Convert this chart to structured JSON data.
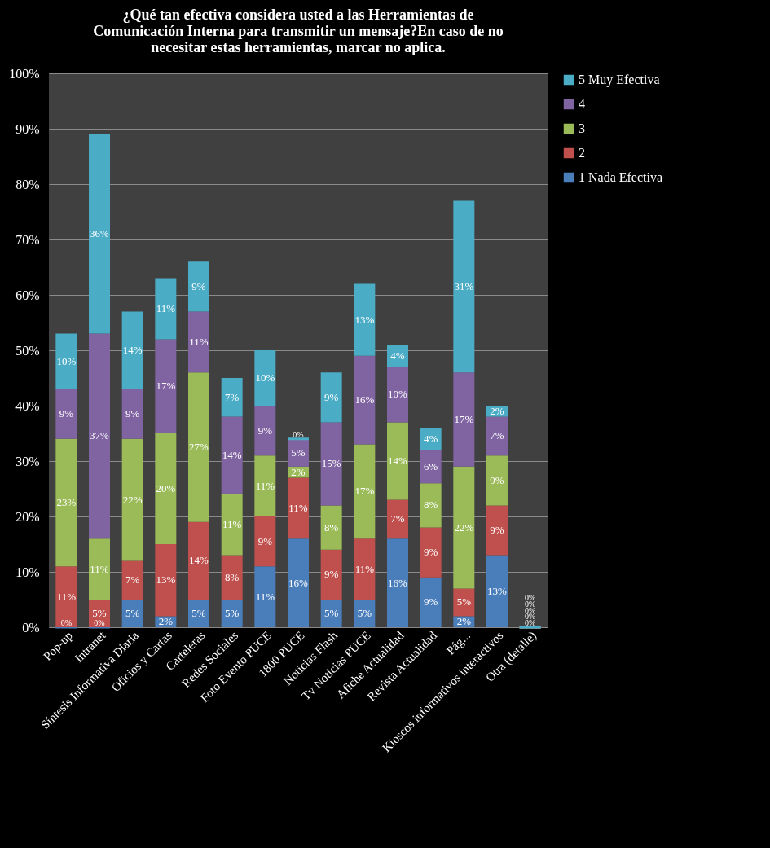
{
  "chart_data": {
    "type": "bar",
    "stacked": true,
    "title": "¿Qué tan efectiva considera usted a las Herramientas de Comunicación Interna para transmitir un mensaje?En caso de no necesitar estas herramientas, marcar no aplica.",
    "categories": [
      "Pop-up",
      "Intranet",
      "Síntesis Informativa Diaria",
      "Oficios y Cartas",
      "Carteleras",
      "Redes Sociales",
      "Foto Evento PUCE",
      "1800 PUCE",
      "Noticias Flash",
      "Tv Noticias PUCE",
      "Afiche Actualidad",
      "Revista Actualidad",
      "Pág...",
      "Kioscos informativos interactivos",
      "Otra (detalle)"
    ],
    "series": [
      {
        "name": "1 Nada Efectiva",
        "color": "#4a7ebb",
        "values": [
          0,
          0,
          5,
          2,
          5,
          5,
          11,
          16,
          5,
          5,
          16,
          9,
          2,
          13,
          0
        ],
        "value_labels": [
          "0%",
          "0%",
          "5%",
          "2%",
          "5%",
          "5%",
          "11%",
          "16%",
          "5%",
          "5%",
          "16%",
          "9%",
          "2%",
          "13%",
          "0%"
        ]
      },
      {
        "name": "2",
        "color": "#c0504d",
        "values": [
          11,
          5,
          7,
          13,
          14,
          8,
          9,
          11,
          9,
          11,
          7,
          9,
          5,
          9,
          0
        ],
        "value_labels": [
          "11%",
          "5%",
          "7%",
          "13%",
          "14%",
          "8%",
          "9%",
          "11%",
          "9%",
          "11%",
          "7%",
          "9%",
          "5%",
          "9%",
          "0%"
        ]
      },
      {
        "name": "3",
        "color": "#9bbb59",
        "values": [
          23,
          11,
          22,
          20,
          27,
          11,
          11,
          2,
          8,
          17,
          14,
          8,
          22,
          9,
          0
        ],
        "value_labels": [
          "23%",
          "11%",
          "22%",
          "20%",
          "27%",
          "11%",
          "11%",
          "2%",
          "8%",
          "17%",
          "14%",
          "8%",
          "22%",
          "9%",
          "0%"
        ]
      },
      {
        "name": "4",
        "color": "#8064a2",
        "values": [
          9,
          37,
          9,
          17,
          11,
          14,
          9,
          5,
          15,
          16,
          10,
          6,
          17,
          7,
          0
        ],
        "value_labels": [
          "9%",
          "37%",
          "9%",
          "17%",
          "11%",
          "14%",
          "9%",
          "5%",
          "15%",
          "16%",
          "10%",
          "6%",
          "17%",
          "7%",
          "0%"
        ]
      },
      {
        "name": "5 Muy Efectiva",
        "color": "#4bacc6",
        "values": [
          10,
          36,
          14,
          11,
          9,
          7,
          10,
          0,
          9,
          13,
          4,
          4,
          31,
          2,
          0
        ],
        "value_labels": [
          "10%",
          "36%",
          "14%",
          "11%",
          "9%",
          "7%",
          "10%",
          "0%",
          "9%",
          "13%",
          "4%",
          "4%",
          "31%",
          "2%",
          "0%"
        ]
      }
    ],
    "ylim": [
      0,
      100
    ],
    "yticks": [
      {
        "value": 0,
        "label": "0%"
      },
      {
        "value": 10,
        "label": "10%"
      },
      {
        "value": 20,
        "label": "20%"
      },
      {
        "value": 30,
        "label": "30%"
      },
      {
        "value": 40,
        "label": "40%"
      },
      {
        "value": 50,
        "label": "50%"
      },
      {
        "value": 60,
        "label": "60%"
      },
      {
        "value": 70,
        "label": "70%"
      },
      {
        "value": 80,
        "label": "80%"
      },
      {
        "value": 90,
        "label": "90%"
      },
      {
        "value": 100,
        "label": "100%"
      }
    ],
    "grid": "y",
    "legend": "right"
  }
}
